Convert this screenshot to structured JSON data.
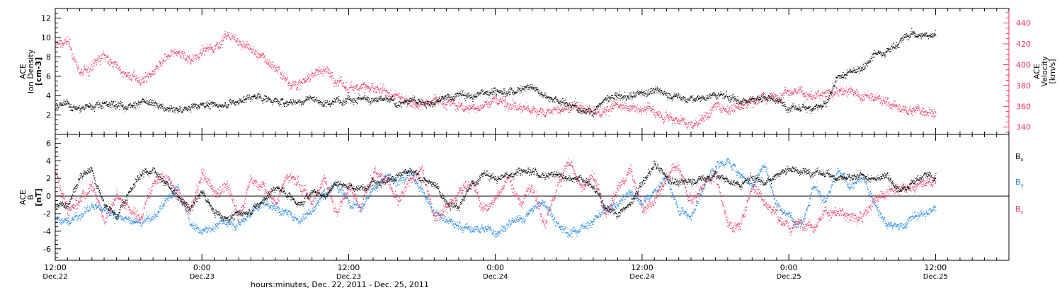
{
  "colors": {
    "black": "#000000",
    "pink": "#e8305a",
    "blue": "#1a80e0",
    "axis": "#000000"
  },
  "time_axis": {
    "label": "hours:minutes, Dec. 22, 2011 - Dec. 25, 2011",
    "hours_range": [
      0,
      78
    ],
    "major_ticks": [
      {
        "hour": 0,
        "time": "12:00",
        "date": "Dec.22"
      },
      {
        "hour": 12,
        "time": "0:00",
        "date": "Dec.23"
      },
      {
        "hour": 24,
        "time": "12:00",
        "date": "Dec.23"
      },
      {
        "hour": 36,
        "time": "0:00",
        "date": "Dec.24"
      },
      {
        "hour": 48,
        "time": "12:00",
        "date": "Dec.24"
      },
      {
        "hour": 60,
        "time": "0:00",
        "date": "Dec.25"
      },
      {
        "hour": 72,
        "time": "12:00",
        "date": "Dec.25"
      }
    ],
    "minor_tick_hours": 1
  },
  "chart_data": [
    {
      "type": "scatter",
      "panel": "top",
      "left_axis": {
        "label_lines": [
          "ACE",
          "Ion Density",
          "[cm-3]"
        ],
        "ylim": [
          0,
          13
        ],
        "ticks": [
          2,
          4,
          6,
          8,
          10,
          12
        ]
      },
      "right_axis": {
        "label_lines": [
          "ACE",
          "Velocity",
          "[km/s]"
        ],
        "ylim": [
          333,
          454
        ],
        "ticks": [
          340,
          360,
          380,
          400,
          420,
          440
        ]
      },
      "series": [
        {
          "color": "black",
          "axis": "left",
          "x_hours": [
            0,
            1,
            2,
            3,
            4,
            5,
            6,
            7,
            8,
            9,
            10,
            11,
            12,
            13,
            14,
            15,
            16,
            17,
            18,
            19,
            20,
            21,
            22,
            23,
            24,
            25,
            26,
            27,
            28,
            29,
            30,
            31,
            32,
            33,
            34,
            35,
            36,
            37,
            38,
            39,
            40,
            41,
            42,
            43,
            44,
            45,
            46,
            47,
            48,
            49,
            50,
            51,
            52,
            53,
            54,
            55,
            56,
            57,
            58,
            59,
            60,
            61,
            62,
            63,
            64,
            65,
            66,
            67,
            68,
            69,
            70,
            71,
            72
          ],
          "values": [
            2.8,
            3.1,
            2.6,
            3.0,
            3.3,
            3.1,
            2.9,
            3.4,
            3.2,
            2.6,
            2.5,
            2.8,
            3.3,
            3.0,
            3.2,
            3.4,
            3.9,
            3.8,
            3.5,
            3.3,
            3.4,
            3.8,
            3.2,
            3.5,
            3.9,
            3.8,
            3.4,
            3.6,
            3.2,
            3.4,
            3.6,
            3.3,
            3.8,
            4.2,
            3.9,
            4.4,
            4.6,
            4.3,
            4.8,
            5.0,
            4.2,
            3.5,
            3.1,
            2.6,
            2.4,
            3.6,
            4.0,
            3.8,
            4.4,
            4.6,
            4.2,
            3.9,
            3.6,
            3.8,
            4.1,
            3.9,
            3.5,
            3.7,
            3.9,
            3.6,
            2.8,
            2.7,
            2.9,
            3.0,
            5.8,
            6.4,
            7.0,
            8.4,
            8.6,
            9.6,
            10.4,
            10.2,
            10.5
          ],
          "jitter": 0.55
        },
        {
          "color": "pink",
          "axis": "right",
          "x_hours": [
            0,
            1,
            2,
            3,
            4,
            5,
            6,
            7,
            8,
            9,
            10,
            11,
            12,
            13,
            14,
            15,
            16,
            17,
            18,
            19,
            20,
            21,
            22,
            23,
            24,
            25,
            26,
            27,
            28,
            29,
            30,
            31,
            32,
            33,
            34,
            35,
            36,
            37,
            38,
            39,
            40,
            41,
            42,
            43,
            44,
            45,
            46,
            47,
            48,
            49,
            50,
            51,
            52,
            53,
            54,
            55,
            56,
            57,
            58,
            59,
            60,
            61,
            62,
            63,
            64,
            65,
            66,
            67,
            68,
            69,
            70,
            71,
            72
          ],
          "values": [
            420,
            422,
            392,
            398,
            410,
            398,
            390,
            385,
            392,
            405,
            412,
            406,
            412,
            418,
            428,
            423,
            415,
            406,
            398,
            385,
            380,
            392,
            396,
            386,
            376,
            382,
            376,
            372,
            369,
            366,
            362,
            368,
            364,
            360,
            358,
            362,
            366,
            364,
            358,
            357,
            355,
            356,
            358,
            360,
            352,
            355,
            362,
            359,
            358,
            356,
            352,
            348,
            342,
            350,
            360,
            358,
            362,
            366,
            368,
            370,
            378,
            374,
            368,
            372,
            376,
            374,
            370,
            368,
            364,
            358,
            356,
            358,
            355
          ],
          "jitter": 7
        }
      ]
    },
    {
      "type": "scatter",
      "panel": "bottom",
      "left_axis": {
        "label_lines": [
          "ACE",
          "B",
          "[nT]"
        ],
        "ylim": [
          -7.3,
          7.0
        ],
        "ticks": [
          -6,
          -4,
          -2,
          0,
          2,
          4,
          6
        ]
      },
      "zero_line": true,
      "legend": {
        "placement": "right",
        "entries": [
          {
            "base": "B",
            "sub": "x",
            "color": "black"
          },
          {
            "base": "B",
            "sub": "y",
            "color": "blue"
          },
          {
            "base": "B",
            "sub": "z",
            "color": "pink"
          }
        ]
      },
      "series": [
        {
          "name": "Bx",
          "color": "black",
          "x_hours": [
            0,
            1,
            2,
            3,
            4,
            5,
            6,
            7,
            8,
            9,
            10,
            11,
            12,
            13,
            14,
            15,
            16,
            17,
            18,
            19,
            20,
            21,
            22,
            23,
            24,
            25,
            26,
            27,
            28,
            29,
            30,
            31,
            32,
            33,
            34,
            35,
            36,
            37,
            38,
            39,
            40,
            41,
            42,
            43,
            44,
            45,
            46,
            47,
            48,
            49,
            50,
            51,
            52,
            53,
            54,
            55,
            56,
            57,
            58,
            59,
            60,
            61,
            62,
            63,
            64,
            65,
            66,
            67,
            68,
            69,
            70,
            71,
            72
          ],
          "values": [
            -1.2,
            -0.8,
            2.2,
            2.8,
            -1.0,
            -2.2,
            0.5,
            2.6,
            3.0,
            1.5,
            -0.2,
            -1.5,
            0.5,
            -1.8,
            -2.4,
            -2.0,
            -1.6,
            -0.5,
            1.0,
            0.2,
            -1.0,
            0.6,
            0.0,
            1.5,
            1.2,
            0.8,
            2.0,
            1.6,
            2.2,
            2.8,
            2.0,
            1.2,
            -0.5,
            -1.2,
            1.2,
            2.6,
            2.0,
            2.4,
            3.0,
            2.8,
            2.4,
            2.6,
            2.2,
            2.0,
            1.0,
            -1.2,
            -2.0,
            -1.0,
            1.5,
            3.5,
            2.2,
            1.5,
            1.8,
            2.0,
            2.4,
            1.8,
            1.2,
            2.2,
            1.6,
            2.5,
            3.2,
            2.8,
            2.8,
            2.5,
            2.2,
            2.0,
            2.2,
            1.8,
            2.6,
            0.6,
            1.5,
            2.5,
            2.0
          ],
          "jitter": 0.6
        },
        {
          "name": "By",
          "color": "blue",
          "x_hours": [
            0,
            1,
            2,
            3,
            4,
            5,
            6,
            7,
            8,
            9,
            10,
            11,
            12,
            13,
            14,
            15,
            16,
            17,
            18,
            19,
            20,
            21,
            22,
            23,
            24,
            25,
            26,
            27,
            28,
            29,
            30,
            31,
            32,
            33,
            34,
            35,
            36,
            37,
            38,
            39,
            40,
            41,
            42,
            43,
            44,
            45,
            46,
            47,
            48,
            49,
            50,
            51,
            52,
            53,
            54,
            55,
            56,
            57,
            58,
            59,
            60,
            61,
            62,
            63,
            64,
            65,
            66,
            67,
            68,
            69,
            70,
            71,
            72
          ],
          "values": [
            -2.4,
            -3.0,
            -2.0,
            -1.2,
            -1.4,
            -2.2,
            -2.8,
            -3.0,
            -2.4,
            -0.8,
            1.0,
            -3.0,
            -4.0,
            -3.4,
            -2.8,
            -3.0,
            -1.8,
            -0.6,
            -1.2,
            -2.0,
            -2.6,
            -1.5,
            0.5,
            1.2,
            -0.5,
            -1.0,
            0.8,
            2.2,
            1.5,
            2.8,
            0.5,
            -1.8,
            -2.8,
            -3.4,
            -3.8,
            -3.6,
            -4.0,
            -3.2,
            -2.8,
            -1.5,
            -0.6,
            -3.0,
            -4.2,
            -3.6,
            -2.8,
            -1.5,
            -1.0,
            0.5,
            -0.8,
            0.8,
            2.0,
            -1.5,
            -2.4,
            1.0,
            3.5,
            4.0,
            2.5,
            1.2,
            3.6,
            -1.0,
            -2.2,
            -3.0,
            1.2,
            -0.8,
            2.8,
            1.2,
            2.0,
            -0.5,
            -3.2,
            -3.6,
            -2.4,
            -2.0,
            -1.4
          ],
          "jitter": 0.7
        },
        {
          "name": "Bz",
          "color": "pink",
          "x_hours": [
            0,
            1,
            2,
            3,
            4,
            5,
            6,
            7,
            8,
            9,
            10,
            11,
            12,
            13,
            14,
            15,
            16,
            17,
            18,
            19,
            20,
            21,
            22,
            23,
            24,
            25,
            26,
            27,
            28,
            29,
            30,
            31,
            32,
            33,
            34,
            35,
            36,
            37,
            38,
            39,
            40,
            41,
            42,
            43,
            44,
            45,
            46,
            47,
            48,
            49,
            50,
            51,
            52,
            53,
            54,
            55,
            56,
            57,
            58,
            59,
            60,
            61,
            62,
            63,
            64,
            65,
            66,
            67,
            68,
            69,
            70,
            71,
            72
          ],
          "values": [
            3.0,
            -1.5,
            -0.5,
            1.5,
            -2.8,
            0.5,
            -1.5,
            -2.6,
            1.8,
            2.4,
            0.2,
            -1.8,
            2.4,
            0.5,
            1.2,
            -2.2,
            2.0,
            1.0,
            -0.8,
            2.4,
            1.2,
            -0.5,
            2.2,
            -1.8,
            1.0,
            -1.0,
            2.5,
            2.4,
            -0.8,
            1.5,
            3.0,
            -2.2,
            -1.2,
            0.5,
            1.8,
            -1.6,
            -0.4,
            2.4,
            -1.0,
            1.5,
            -3.5,
            1.0,
            4.2,
            0.8,
            2.4,
            -2.0,
            0.5,
            3.0,
            -1.5,
            -0.5,
            2.2,
            3.5,
            -0.5,
            1.5,
            2.5,
            -3.0,
            -3.6,
            1.5,
            -0.5,
            -2.0,
            -3.8,
            -2.8,
            -3.2,
            -1.8,
            -2.0,
            -2.4,
            -2.2,
            -0.5,
            0.5,
            0.8,
            1.0,
            1.5,
            1.8
          ],
          "jitter": 0.9
        }
      ]
    }
  ]
}
